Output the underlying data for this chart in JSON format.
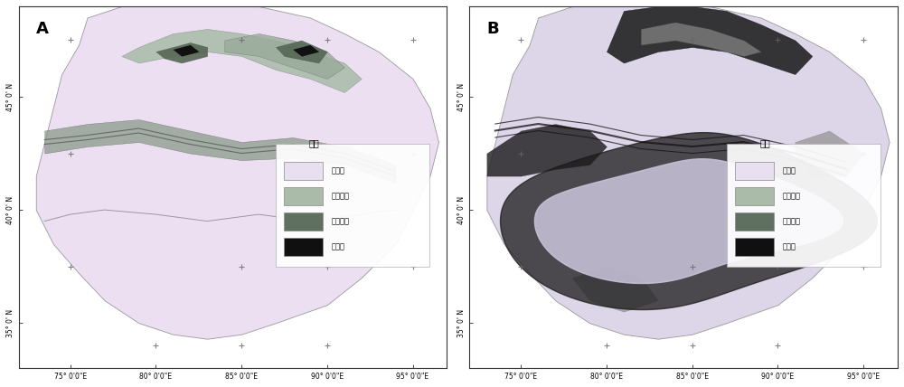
{
  "panel_A_label": "A",
  "panel_B_label": "B",
  "legend_title": "图例",
  "legend_items_A": [
    {
      "label": "低风险",
      "color": "#e8dff0"
    },
    {
      "label": "中等偏低",
      "color": "#aabbaa"
    },
    {
      "label": "中等偏高",
      "color": "#607060"
    },
    {
      "label": "高风险",
      "color": "#101010"
    }
  ],
  "legend_items_B": [
    {
      "label": "低风险",
      "color": "#e8dff0"
    },
    {
      "label": "中等偏低",
      "color": "#aabbaa"
    },
    {
      "label": "中等偏高",
      "color": "#607060"
    },
    {
      "label": "高风险",
      "color": "#101010"
    }
  ],
  "x_ticks": [
    75,
    80,
    85,
    90,
    95
  ],
  "x_tick_labels": [
    "75° 0'0\"E",
    "80° 0'0\"E",
    "85° 0'0\"E",
    "90° 0'0\"E",
    "95° 0'0\"E"
  ],
  "y_ticks": [
    35,
    40,
    45
  ],
  "y_tick_labels": [
    "35° 0' N",
    "40° 0' N",
    "45° 0' N"
  ],
  "xlim": [
    72,
    97
  ],
  "ylim": [
    33,
    49
  ],
  "background_color": "#ffffff",
  "crosshair_positions": [
    [
      75,
      47.5
    ],
    [
      85,
      47.5
    ],
    [
      90,
      47.5
    ],
    [
      95,
      47.5
    ],
    [
      75,
      42.5
    ],
    [
      95,
      42.5
    ],
    [
      75,
      37.5
    ],
    [
      85,
      37.5
    ],
    [
      90,
      37.5
    ],
    [
      95,
      37.5
    ],
    [
      80,
      34
    ],
    [
      85,
      34
    ],
    [
      90,
      34
    ]
  ]
}
